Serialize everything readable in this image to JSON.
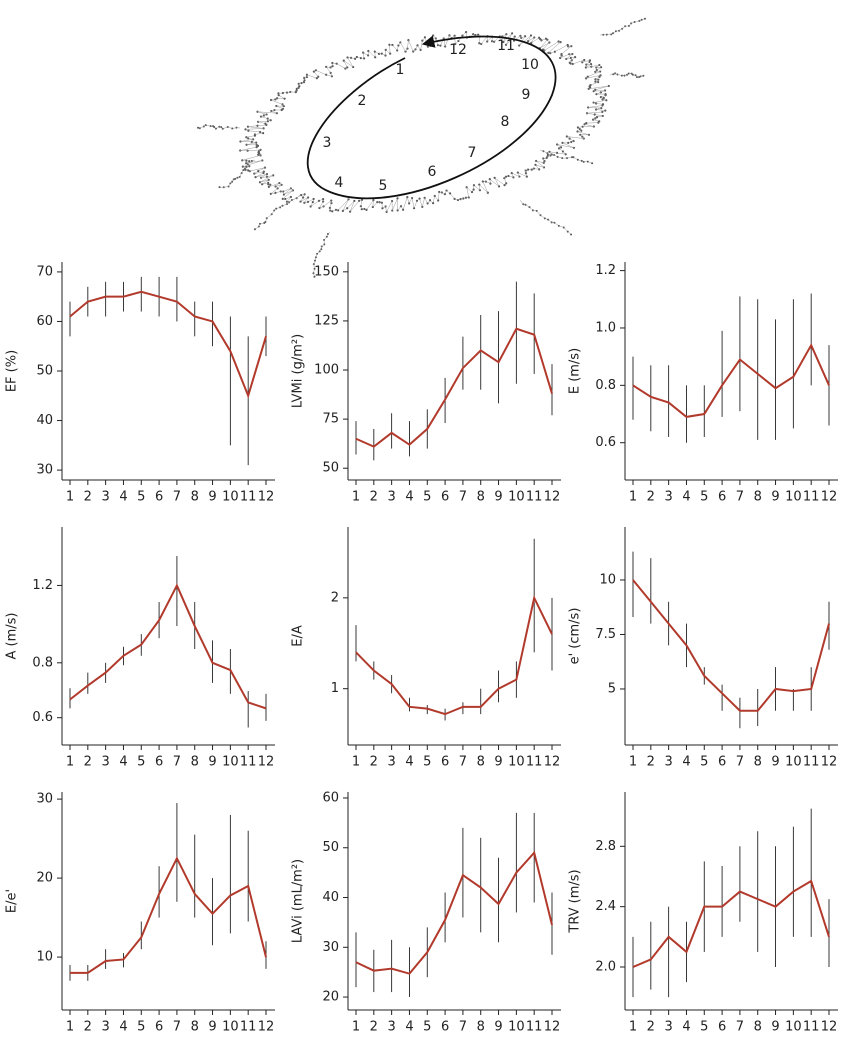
{
  "trajectory": {
    "labels": [
      "1",
      "2",
      "3",
      "4",
      "5",
      "6",
      "7",
      "8",
      "9",
      "10",
      "11",
      "12"
    ]
  },
  "chart_data": [
    {
      "type": "line",
      "ylabel": "EF (%)",
      "categories": [
        "1",
        "2",
        "3",
        "4",
        "5",
        "6",
        "7",
        "8",
        "9",
        "10",
        "11",
        "12"
      ],
      "values": [
        61,
        64,
        65,
        65,
        66,
        65,
        64,
        61,
        60,
        54,
        45,
        57
      ],
      "lower": [
        57,
        61,
        61,
        62,
        62,
        61,
        60,
        57,
        55,
        35,
        31,
        53
      ],
      "upper": [
        64,
        67,
        68,
        68,
        69,
        69,
        69,
        64,
        64,
        61,
        57,
        61
      ],
      "ylim": [
        28,
        72
      ],
      "yticks": [
        30,
        40,
        50,
        60,
        70
      ],
      "color": "#b23a2c"
    },
    {
      "type": "line",
      "ylabel": "LVMi (g/m²)",
      "categories": [
        "1",
        "2",
        "3",
        "4",
        "5",
        "6",
        "7",
        "8",
        "9",
        "10",
        "11",
        "12"
      ],
      "values": [
        65,
        61,
        68,
        62,
        70,
        85,
        101,
        110,
        104,
        121,
        118,
        88
      ],
      "lower": [
        57,
        54,
        60,
        56,
        60,
        73,
        90,
        90,
        83,
        93,
        98,
        77
      ],
      "upper": [
        74,
        70,
        78,
        74,
        80,
        96,
        117,
        128,
        130,
        145,
        139,
        103
      ],
      "ylim": [
        44,
        155
      ],
      "yticks": [
        50,
        75,
        100,
        125,
        150
      ],
      "color": "#b23a2c"
    },
    {
      "type": "line",
      "ylabel": "E (m/s)",
      "categories": [
        "1",
        "2",
        "3",
        "4",
        "5",
        "6",
        "7",
        "8",
        "9",
        "10",
        "11",
        "12"
      ],
      "values": [
        0.8,
        0.76,
        0.74,
        0.69,
        0.7,
        0.8,
        0.89,
        0.84,
        0.79,
        0.83,
        0.94,
        0.8
      ],
      "lower": [
        0.68,
        0.64,
        0.62,
        0.6,
        0.62,
        0.69,
        0.71,
        0.61,
        0.61,
        0.65,
        0.8,
        0.66
      ],
      "upper": [
        0.9,
        0.87,
        0.87,
        0.8,
        0.8,
        0.99,
        1.11,
        1.1,
        1.03,
        1.1,
        1.12,
        0.94
      ],
      "ylim": [
        0.47,
        1.23
      ],
      "yticks": [
        0.6,
        0.8,
        {
          "value": 1,
          "label": "1.0"
        },
        1.2
      ],
      "color": "#b23a2c"
    },
    {
      "type": "line",
      "ylabel": "A (m/s)",
      "log": true,
      "categories": [
        "1",
        "2",
        "3",
        "4",
        "5",
        "6",
        "7",
        "8",
        "9",
        "10",
        "11",
        "12"
      ],
      "values": [
        0.66,
        0.71,
        0.76,
        0.83,
        0.88,
        1.0,
        1.2,
        0.97,
        0.8,
        0.77,
        0.65,
        0.63
      ],
      "lower": [
        0.63,
        0.68,
        0.72,
        0.79,
        0.83,
        0.91,
        0.97,
        0.86,
        0.72,
        0.68,
        0.57,
        0.59
      ],
      "upper": [
        0.7,
        0.76,
        0.8,
        0.87,
        0.93,
        1.1,
        1.4,
        1.1,
        0.9,
        0.86,
        0.69,
        0.68
      ],
      "ylim": [
        0.52,
        1.63
      ],
      "yticks": [
        0.6,
        0.8,
        1.2
      ],
      "color": "#b23a2c"
    },
    {
      "type": "line",
      "ylabel": "E/A",
      "categories": [
        "1",
        "2",
        "3",
        "4",
        "5",
        "6",
        "7",
        "8",
        "9",
        "10",
        "11",
        "12"
      ],
      "values": [
        1.4,
        1.2,
        1.05,
        0.8,
        0.78,
        0.72,
        0.8,
        0.8,
        1.0,
        1.1,
        2.0,
        1.6
      ],
      "lower": [
        1.3,
        1.1,
        0.95,
        0.75,
        0.72,
        0.65,
        0.72,
        0.72,
        0.85,
        0.9,
        1.4,
        1.2
      ],
      "upper": [
        1.7,
        1.3,
        1.15,
        0.9,
        0.82,
        0.78,
        0.85,
        1.0,
        1.2,
        1.3,
        2.65,
        2.0
      ],
      "ylim": [
        0.38,
        2.78
      ],
      "yticks": [
        1,
        2
      ],
      "color": "#b23a2c"
    },
    {
      "type": "line",
      "ylabel": "e' (cm/s)",
      "categories": [
        "1",
        "2",
        "3",
        "4",
        "5",
        "6",
        "7",
        "8",
        "9",
        "10",
        "11",
        "12"
      ],
      "values": [
        10,
        9,
        8,
        7,
        5.6,
        4.8,
        4,
        4,
        5,
        4.9,
        5,
        8
      ],
      "lower": [
        8.3,
        8,
        7,
        6,
        5.2,
        4,
        3.2,
        3.3,
        4,
        4,
        4,
        6.8
      ],
      "upper": [
        11.3,
        11,
        9,
        8,
        6,
        5.2,
        4.6,
        5,
        6,
        5,
        6,
        9
      ],
      "ylim": [
        2.43,
        12.43
      ],
      "yticks": [
        5,
        7.5,
        10
      ],
      "color": "#b23a2c"
    },
    {
      "type": "line",
      "ylabel": "E/e'",
      "categories": [
        "1",
        "2",
        "3",
        "4",
        "5",
        "6",
        "7",
        "8",
        "9",
        "10",
        "11",
        "12"
      ],
      "values": [
        8,
        8,
        9.5,
        9.7,
        12.5,
        18,
        22.5,
        18,
        15.5,
        17.8,
        19,
        10
      ],
      "lower": [
        7,
        7,
        8.5,
        8.7,
        11,
        15,
        17,
        15,
        11.5,
        13,
        14.5,
        8.5
      ],
      "upper": [
        9,
        9,
        11,
        10.5,
        14.5,
        21.5,
        29.5,
        25.5,
        20,
        28,
        26,
        12
      ],
      "ylim": [
        3.3,
        30.9
      ],
      "yticks": [
        10,
        20,
        30
      ],
      "color": "#b23a2c"
    },
    {
      "type": "line",
      "ylabel": "LAVi (mL/m²)",
      "categories": [
        "1",
        "2",
        "3",
        "4",
        "5",
        "6",
        "7",
        "8",
        "9",
        "10",
        "11",
        "12"
      ],
      "values": [
        27,
        25.3,
        25.7,
        24.7,
        29,
        35.5,
        44.5,
        42,
        38.7,
        45,
        49,
        34.5
      ],
      "lower": [
        22,
        21,
        21,
        20,
        24,
        31,
        36,
        33,
        31,
        37,
        39,
        28.5
      ],
      "upper": [
        33,
        29.5,
        31.5,
        30,
        34,
        41,
        54,
        52,
        48,
        57,
        57,
        41
      ],
      "ylim": [
        17.4,
        61.2
      ],
      "yticks": [
        20,
        30,
        40,
        50,
        60
      ],
      "color": "#b23a2c"
    },
    {
      "type": "line",
      "ylabel": "TRV (m/s)",
      "categories": [
        "1",
        "2",
        "3",
        "4",
        "5",
        "6",
        "7",
        "8",
        "9",
        "10",
        "11",
        "12"
      ],
      "values": [
        2.0,
        2.05,
        2.2,
        2.1,
        2.4,
        2.4,
        2.5,
        2.45,
        2.4,
        2.5,
        2.57,
        2.2
      ],
      "lower": [
        1.8,
        1.85,
        1.8,
        1.9,
        2.1,
        2.2,
        2.3,
        2.1,
        2.0,
        2.2,
        2.2,
        2.0
      ],
      "upper": [
        2.2,
        2.3,
        2.4,
        2.3,
        2.7,
        2.67,
        2.8,
        2.9,
        2.8,
        2.93,
        3.05,
        2.45
      ],
      "ylim": [
        1.715,
        3.16
      ],
      "yticks": [
        {
          "value": 2,
          "label": "2.0"
        },
        2.4,
        2.8
      ],
      "color": "#b23a2c"
    }
  ]
}
